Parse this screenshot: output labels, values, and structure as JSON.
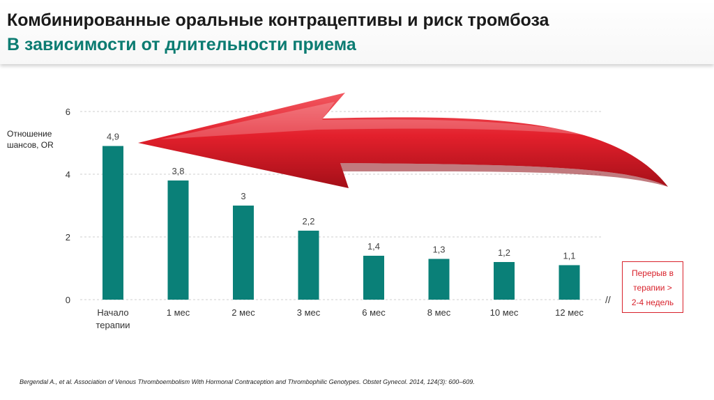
{
  "header": {
    "title": "Комбинированные оральные контрацептивы и риск тромбоза",
    "subtitle": "В зависимости от длительности приема"
  },
  "chart_data": {
    "type": "bar",
    "ylabel_lines": [
      "Отношение",
      "шансов, OR"
    ],
    "xlabel": "",
    "ylim": [
      0,
      6
    ],
    "yticks": [
      0,
      2,
      4,
      6
    ],
    "grid": true,
    "categories": [
      [
        "Начало",
        "терапии"
      ],
      [
        "1 мес"
      ],
      [
        "2 мес"
      ],
      [
        "3 мес"
      ],
      [
        "6 мес"
      ],
      [
        "8 мес"
      ],
      [
        "10 мес"
      ],
      [
        "12 мес"
      ]
    ],
    "values": [
      4.9,
      3.8,
      3,
      2.2,
      1.4,
      1.3,
      1.2,
      1.1
    ],
    "value_labels": [
      "4,9",
      "3,8",
      "3",
      "2,2",
      "1,4",
      "1,3",
      "1,2",
      "1,1"
    ],
    "bar_color": "#0a8078",
    "arrow_color": "#e3202c",
    "axis_break": "//",
    "annotation_lines": [
      "Перерыв в",
      "терапии >",
      "2-4 недель"
    ]
  },
  "citation": "Bergendal A., et al. Association of Venous Thromboembolism With Hormonal Contraception and Thrombophilic Genotypes. Obstet Gynecol. 2014, 124(3): 600–609."
}
